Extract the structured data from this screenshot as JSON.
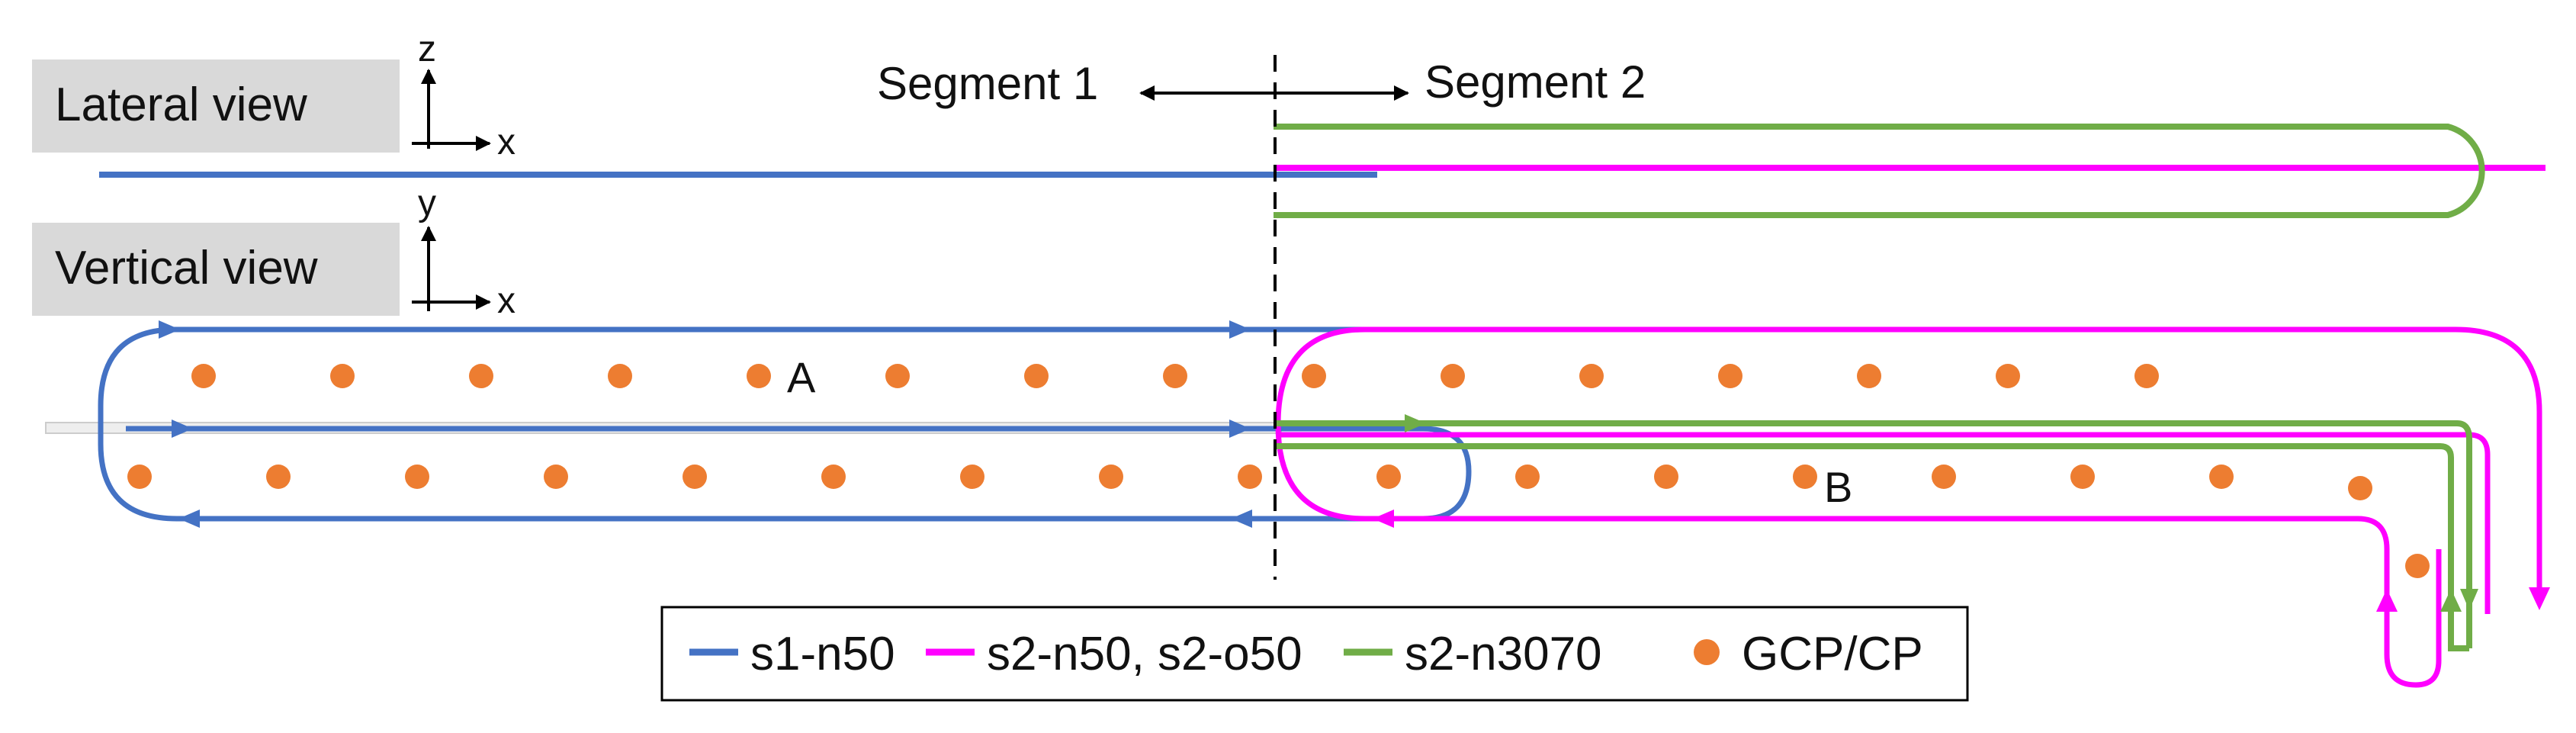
{
  "views": {
    "lateral": "Lateral view",
    "vertical": "Vertical view"
  },
  "axes": {
    "lateral_up": "z",
    "lateral_right": "x",
    "vertical_up": "y",
    "vertical_right": "x"
  },
  "segments": {
    "left": "Segment 1",
    "right": "Segment 2"
  },
  "points": {
    "a": "A",
    "b": "B"
  },
  "legend": [
    {
      "label": "s1-n50",
      "color": "#4472c4",
      "kind": "line",
      "icon": "blue-line-swatch"
    },
    {
      "label": "s2-n50, s2-o50",
      "color": "#ff00ff",
      "kind": "line",
      "icon": "magenta-line-swatch"
    },
    {
      "label": "s2-n3070",
      "color": "#70ad47",
      "kind": "line",
      "icon": "green-line-swatch"
    },
    {
      "label": "GCP/CP",
      "color": "#ed7d31",
      "kind": "dot",
      "icon": "orange-dot-swatch"
    }
  ],
  "colors": {
    "s1": "#4472c4",
    "s2": "#ff00ff",
    "s3070": "#70ad47",
    "gcp": "#ed7d31",
    "label_box": "#d9d9d9"
  }
}
